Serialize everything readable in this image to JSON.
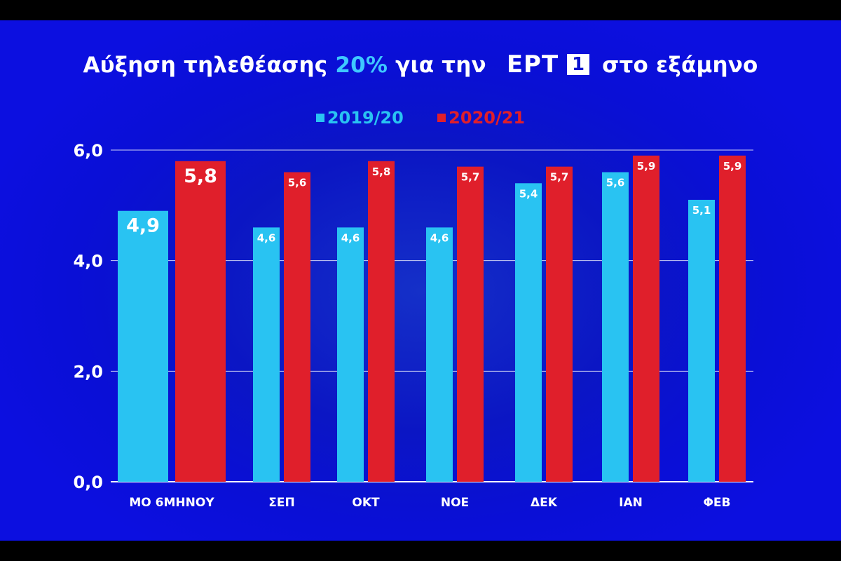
{
  "title": {
    "prefix": "Αύξηση τηλεθέασης",
    "highlight": "20%",
    "middle": "για την",
    "logo_text": "ΕΡΤ",
    "logo_box": "1",
    "suffix": "στο εξάμηνο"
  },
  "colors": {
    "series_a": "#29c3f2",
    "series_b": "#e01f2b",
    "highlight": "#3ec8ff",
    "grid": "#ffffff"
  },
  "chart_data": {
    "type": "bar",
    "title": "Αύξηση τηλεθέασης 20% για την ΕΡΤ 1 στο εξάμηνο",
    "categories": [
      "ΜΟ 6ΜΗΝΟΥ",
      "ΣΕΠ",
      "ΟΚΤ",
      "ΝΟΕ",
      "ΔΕΚ",
      "ΙΑΝ",
      "ΦΕΒ"
    ],
    "series": [
      {
        "name": "2019/20",
        "values": [
          4.9,
          4.6,
          4.6,
          4.6,
          5.4,
          5.6,
          5.1
        ],
        "labels": [
          "4,9",
          "4,6",
          "4,6",
          "4,6",
          "5,4",
          "5,6",
          "5,1"
        ]
      },
      {
        "name": "2020/21",
        "values": [
          5.8,
          5.6,
          5.8,
          5.7,
          5.7,
          5.9,
          5.9
        ],
        "labels": [
          "5,8",
          "5,6",
          "5,8",
          "5,7",
          "5,7",
          "5,9",
          "5,9"
        ]
      }
    ],
    "yticks": [
      "0,0",
      "2,0",
      "4,0",
      "6,0"
    ],
    "ylim": [
      0,
      6
    ],
    "xlabel": "",
    "ylabel": "",
    "legend": "top-center",
    "grid": true
  }
}
